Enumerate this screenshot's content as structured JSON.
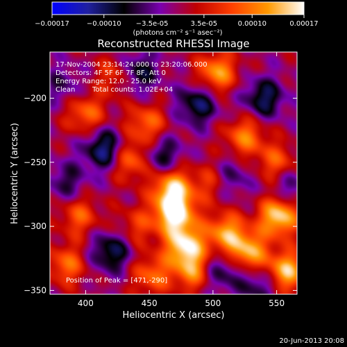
{
  "chart_data": {
    "type": "heatmap",
    "title": "Reconstructed RHESSI Image",
    "xlabel": "Heliocentric X (arcsec)",
    "ylabel": "Heliocentric Y (arcsec)",
    "xlim": [
      372,
      566
    ],
    "ylim": [
      -353,
      -164
    ],
    "x_ticks": [
      400,
      450,
      500,
      550
    ],
    "x_tick_labels": [
      "400",
      "450",
      "500",
      "550"
    ],
    "y_ticks": [
      -350,
      -300,
      -250,
      -200
    ],
    "y_tick_labels": [
      "-350",
      "-300",
      "-250",
      "-200"
    ],
    "colorbar": {
      "range": [
        -0.00017,
        0.00017
      ],
      "tick_labels": [
        "-0.00017",
        "-0.00010",
        "-3.5e-05",
        "3.5e-05",
        "0.00010",
        "0.00017"
      ],
      "tick_values": [
        -0.00017,
        -0.0001,
        -3.5e-05,
        3.5e-05,
        0.0001,
        0.00017
      ],
      "unit_label": "(photons cm⁻² s⁻¹ asec⁻²)",
      "colors": [
        "#0000ff",
        "#2020a0",
        "#000000",
        "#7a00b0",
        "#c00000",
        "#ff4000",
        "#ff9900",
        "#ffffff"
      ]
    },
    "annotations": {
      "time_range": "17-Nov-2004 23:14:24.000 to 23:20:06.000",
      "detectors": "Detectors: 4F 5F 6F 7F 8F, Att 0",
      "energy_range": "Energy Range: 12.0 - 25.0 keV",
      "algorithm": "Clean",
      "total_counts": "Total counts: 1.02E+04",
      "peak_position": "Position of Peak = [471,-290]"
    },
    "peak": {
      "x": 471,
      "y": -290
    },
    "blobs": [
      {
        "x": 470,
        "y": -290,
        "v": 0.00017
      },
      {
        "x": 468,
        "y": -270,
        "v": 0.00014
      },
      {
        "x": 478,
        "y": -315,
        "v": 0.00015
      },
      {
        "x": 485,
        "y": -335,
        "v": 0.00011
      },
      {
        "x": 452,
        "y": -338,
        "v": 9e-05
      },
      {
        "x": 510,
        "y": -305,
        "v": 0.00012
      },
      {
        "x": 528,
        "y": -320,
        "v": 0.00013
      },
      {
        "x": 552,
        "y": -292,
        "v": 0.00016
      },
      {
        "x": 558,
        "y": -335,
        "v": 0.00014
      },
      {
        "x": 503,
        "y": -180,
        "v": 0.00012
      },
      {
        "x": 525,
        "y": -230,
        "v": 0.0001
      },
      {
        "x": 550,
        "y": -250,
        "v": 8e-05
      },
      {
        "x": 435,
        "y": -248,
        "v": 0.0001
      },
      {
        "x": 448,
        "y": -220,
        "v": 9e-05
      },
      {
        "x": 400,
        "y": -212,
        "v": 9e-05
      },
      {
        "x": 395,
        "y": -292,
        "v": 8e-05
      },
      {
        "x": 425,
        "y": -182,
        "v": 8e-05
      },
      {
        "x": 385,
        "y": -330,
        "v": 9e-05
      },
      {
        "x": 500,
        "y": -265,
        "v": 7e-05
      },
      {
        "x": 440,
        "y": -300,
        "v": 6e-05
      },
      {
        "x": 415,
        "y": -240,
        "v": -0.00012
      },
      {
        "x": 420,
        "y": -320,
        "v": -0.0001
      },
      {
        "x": 440,
        "y": -180,
        "v": -0.0001
      },
      {
        "x": 488,
        "y": -205,
        "v": -0.0001
      },
      {
        "x": 513,
        "y": -262,
        "v": -7e-05
      },
      {
        "x": 540,
        "y": -200,
        "v": -0.0001
      },
      {
        "x": 460,
        "y": -245,
        "v": -8e-05
      },
      {
        "x": 505,
        "y": -335,
        "v": -8e-05
      },
      {
        "x": 385,
        "y": -265,
        "v": -6e-05
      },
      {
        "x": 382,
        "y": -190,
        "v": -5e-05
      },
      {
        "x": 560,
        "y": -270,
        "v": -6e-05
      },
      {
        "x": 535,
        "y": -346,
        "v": -7e-05
      }
    ]
  },
  "footer": {
    "date": "20-Jun-2013 20:08"
  }
}
